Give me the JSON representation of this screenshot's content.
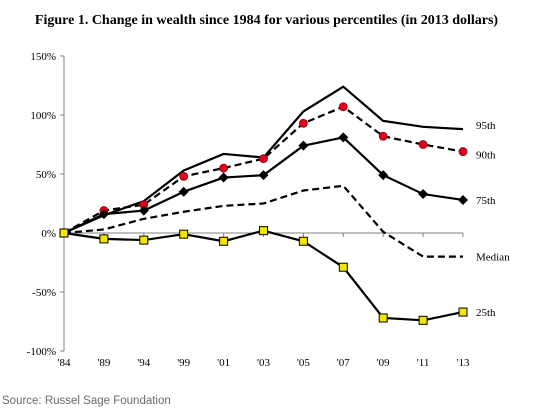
{
  "header": {
    "title": "Figure 1. Change in wealth since 1984 for various percentiles (in 2013 dollars)"
  },
  "footer": {
    "source": "Source: Russel Sage Foundation"
  },
  "chart_data": {
    "type": "line",
    "title": "Figure 1. Change in wealth since 1984 for various percentiles (in 2013 dollars)",
    "xlabel": "",
    "ylabel": "",
    "categories": [
      "'84",
      "'89",
      "'94",
      "'99",
      "'01",
      "'03",
      "'05",
      "'07",
      "'09",
      "'11",
      "'13"
    ],
    "ylim": [
      -100,
      150
    ],
    "yticks": [
      -100,
      -50,
      0,
      50,
      100,
      150
    ],
    "ytick_labels": [
      "-100%",
      "-50%",
      "0%",
      "50%",
      "100%",
      "150%"
    ],
    "grid": false,
    "legend": "labels at right end of each line",
    "series": [
      {
        "name": "95th",
        "values": [
          0,
          15,
          27,
          53,
          67,
          64,
          103,
          124,
          95,
          90,
          88
        ],
        "line_color": "#000000",
        "line_style": "solid",
        "marker": "none"
      },
      {
        "name": "90th",
        "values": [
          0,
          19,
          24,
          48,
          55,
          63,
          93,
          107,
          82,
          75,
          69
        ],
        "line_color": "#000000",
        "line_style": "dashed",
        "marker": "circle",
        "marker_color": "#e3001b"
      },
      {
        "name": "75th",
        "values": [
          0,
          16,
          19,
          35,
          47,
          49,
          74,
          81,
          49,
          33,
          28
        ],
        "line_color": "#000000",
        "line_style": "solid",
        "marker": "diamond",
        "marker_color": "#000000"
      },
      {
        "name": "Median",
        "values": [
          0,
          3,
          12,
          18,
          23,
          25,
          36,
          40,
          1,
          -20,
          -20
        ],
        "line_color": "#000000",
        "line_style": "dashed",
        "marker": "none"
      },
      {
        "name": "25th",
        "values": [
          0,
          -5,
          -6,
          -1,
          -7,
          2,
          -7,
          -29,
          -72,
          -74,
          -67
        ],
        "line_color": "#000000",
        "line_style": "solid",
        "marker": "square",
        "marker_color": "#f2e600"
      }
    ]
  }
}
